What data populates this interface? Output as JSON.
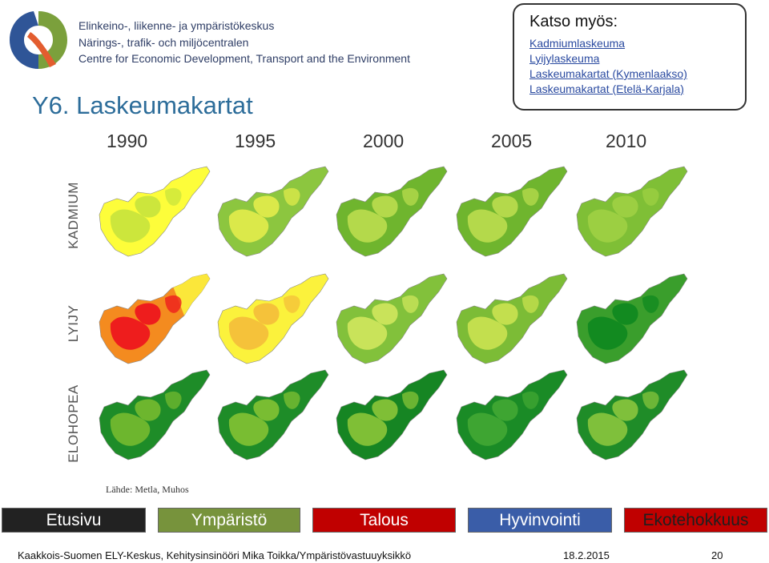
{
  "header": {
    "org_lines": [
      "Elinkeino-, liikenne- ja ympäristökeskus",
      "Närings-, trafik- och miljöcentralen",
      "Centre for Economic Development, Transport and the Environment"
    ],
    "page_title": "Y6. Laskeumakartat"
  },
  "see_also": {
    "title": "Katso myös:",
    "links": [
      "Kadmiumlaskeuma",
      "Lyijylaskeuma",
      "Laskeumakartat (Kymenlaakso)",
      "Laskeumakartat (Etelä-Karjala)"
    ]
  },
  "years": [
    "1990",
    "1995",
    "2000",
    "2005",
    "2010"
  ],
  "row_labels": [
    "KADMIUM",
    "LYIJY",
    "ELOHOPEA"
  ],
  "maps": {
    "KADMIUM": [
      {
        "base": "#fdfd3a",
        "blob": "#cce63c"
      },
      {
        "base": "#8cc63f",
        "blob": "#dbe94a"
      },
      {
        "base": "#6fb52e",
        "blob": "#b4d94b"
      },
      {
        "base": "#6fb52e",
        "blob": "#b4d94b"
      },
      {
        "base": "#7fbf36",
        "blob": "#9ccf42"
      }
    ],
    "LYIJY": [
      {
        "base": "#f48b1f",
        "blob": "#ee1d1d",
        "edge": "#fbe73a"
      },
      {
        "base": "#fbf23c",
        "blob": "#f5c23a"
      },
      {
        "base": "#82c13b",
        "blob": "#c9e35a"
      },
      {
        "base": "#7cbc36",
        "blob": "#c3df4e"
      },
      {
        "base": "#3a9e2c",
        "blob": "#128a20"
      }
    ],
    "ELOHOPEA": [
      {
        "base": "#1e8c28",
        "blob": "#6db62e"
      },
      {
        "base": "#1e8c28",
        "blob": "#79bd32"
      },
      {
        "base": "#168523",
        "blob": "#7fbf36"
      },
      {
        "base": "#1a8b26",
        "blob": "#3ea532"
      },
      {
        "base": "#1f8c28",
        "blob": "#7fc03b"
      }
    ]
  },
  "source": "Lähde: Metla, Muhos",
  "nav": [
    {
      "label": "Etusivu",
      "color": "#222222"
    },
    {
      "label": "Ympäristö",
      "color": "#77933c"
    },
    {
      "label": "Talous",
      "color": "#c00000"
    },
    {
      "label": "Hyvinvointi",
      "color": "#3a5da8"
    },
    {
      "label": "Ekotehokkuus",
      "color": "#c00000",
      "text_color": "#1f1f1f"
    }
  ],
  "footer": {
    "org": "Kaakkois-Suomen ELY-Keskus, Kehitysinsinööri Mika Toikka/Ympäristövastuuyksikkö",
    "date": "18.2.2015",
    "page": "20"
  }
}
